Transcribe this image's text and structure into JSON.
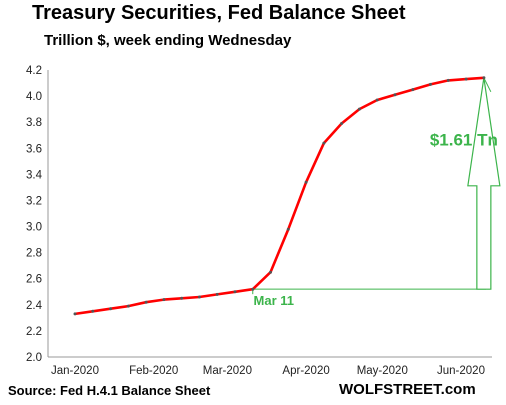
{
  "chart_data": {
    "type": "line",
    "title": "Treasury Securities, Fed Balance Sheet",
    "subtitle": "Trillion $, week ending Wednesday",
    "source": "Source: Fed H.4.1 Balance Sheet",
    "brand": "WOLFSTREET.com",
    "ylim": [
      2.0,
      4.2
    ],
    "y_ticks": [
      "2.0",
      "2.2",
      "2.4",
      "2.6",
      "2.8",
      "3.0",
      "3.2",
      "3.4",
      "3.6",
      "3.8",
      "4.0",
      "4.2"
    ],
    "x_ticks": [
      "Jan-2020",
      "Feb-2020",
      "Mar-2020",
      "Apr-2020",
      "May-2020",
      "Jun-2020"
    ],
    "grid": false,
    "line_color": "#ff0000",
    "annotation_color": "#3cb44b",
    "x": [
      "2020-01-01",
      "2020-01-08",
      "2020-01-15",
      "2020-01-22",
      "2020-01-29",
      "2020-02-05",
      "2020-02-12",
      "2020-02-19",
      "2020-02-26",
      "2020-03-04",
      "2020-03-11",
      "2020-03-18",
      "2020-03-25",
      "2020-04-01",
      "2020-04-08",
      "2020-04-15",
      "2020-04-22",
      "2020-04-29",
      "2020-05-06",
      "2020-05-13",
      "2020-05-20",
      "2020-05-27",
      "2020-06-03",
      "2020-06-10"
    ],
    "series": [
      {
        "values": [
          2.33,
          2.35,
          2.37,
          2.39,
          2.42,
          2.44,
          2.45,
          2.46,
          2.48,
          2.5,
          2.52,
          2.65,
          2.98,
          3.34,
          3.64,
          3.79,
          3.9,
          3.97,
          4.01,
          4.05,
          4.09,
          4.12,
          4.13,
          4.14
        ]
      }
    ],
    "annotations": {
      "start_label": "Mar 11",
      "increase_label": "$1.61 Tn"
    }
  }
}
